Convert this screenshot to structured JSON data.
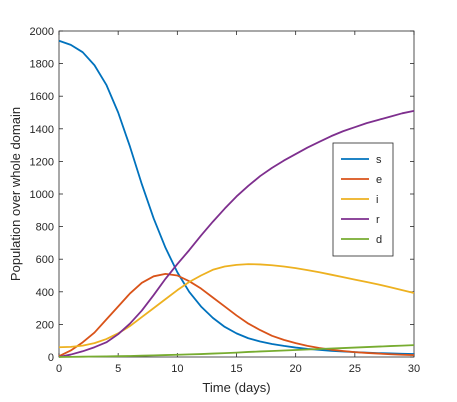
{
  "chart_data": {
    "type": "line",
    "xlabel": "Time (days)",
    "ylabel": "Population over whole domain",
    "xlim": [
      0,
      30
    ],
    "ylim": [
      0,
      2000
    ],
    "xticks": [
      0,
      5,
      10,
      15,
      20,
      25,
      30
    ],
    "yticks": [
      0,
      200,
      400,
      600,
      800,
      1000,
      1200,
      1400,
      1600,
      1800,
      2000
    ],
    "grid": false,
    "legend_position": "right",
    "x": [
      0,
      1,
      2,
      3,
      4,
      5,
      6,
      7,
      8,
      9,
      10,
      11,
      12,
      13,
      14,
      15,
      16,
      17,
      18,
      19,
      20,
      21,
      22,
      23,
      24,
      25,
      26,
      27,
      28,
      29,
      30
    ],
    "series": [
      {
        "name": "s",
        "color": "#0072BD",
        "values": [
          1940,
          1915,
          1870,
          1790,
          1670,
          1500,
          1290,
          1060,
          850,
          670,
          520,
          400,
          310,
          240,
          185,
          145,
          115,
          95,
          80,
          68,
          58,
          50,
          44,
          38,
          34,
          30,
          27,
          24,
          22,
          20,
          18
        ]
      },
      {
        "name": "e",
        "color": "#D95319",
        "values": [
          5,
          40,
          90,
          150,
          230,
          310,
          390,
          455,
          495,
          510,
          500,
          465,
          420,
          365,
          310,
          255,
          205,
          165,
          130,
          105,
          85,
          68,
          55,
          45,
          37,
          30,
          25,
          21,
          17,
          14,
          12
        ]
      },
      {
        "name": "i",
        "color": "#EDB120",
        "values": [
          60,
          62,
          70,
          85,
          110,
          145,
          190,
          245,
          300,
          355,
          410,
          460,
          500,
          535,
          555,
          565,
          570,
          568,
          563,
          555,
          545,
          533,
          520,
          505,
          490,
          475,
          460,
          445,
          428,
          410,
          393
        ]
      },
      {
        "name": "r",
        "color": "#7E2F8E",
        "values": [
          0,
          15,
          35,
          60,
          90,
          140,
          205,
          285,
          380,
          480,
          570,
          655,
          745,
          830,
          910,
          985,
          1050,
          1110,
          1160,
          1205,
          1245,
          1285,
          1320,
          1355,
          1385,
          1410,
          1435,
          1455,
          1475,
          1495,
          1510
        ]
      },
      {
        "name": "d",
        "color": "#77AC30",
        "values": [
          0,
          1,
          2,
          3,
          4,
          5,
          6,
          8,
          10,
          12,
          14,
          16,
          18,
          21,
          24,
          27,
          31,
          34,
          37,
          40,
          43,
          46,
          49,
          52,
          55,
          58,
          61,
          64,
          67,
          70,
          73
        ]
      }
    ]
  }
}
